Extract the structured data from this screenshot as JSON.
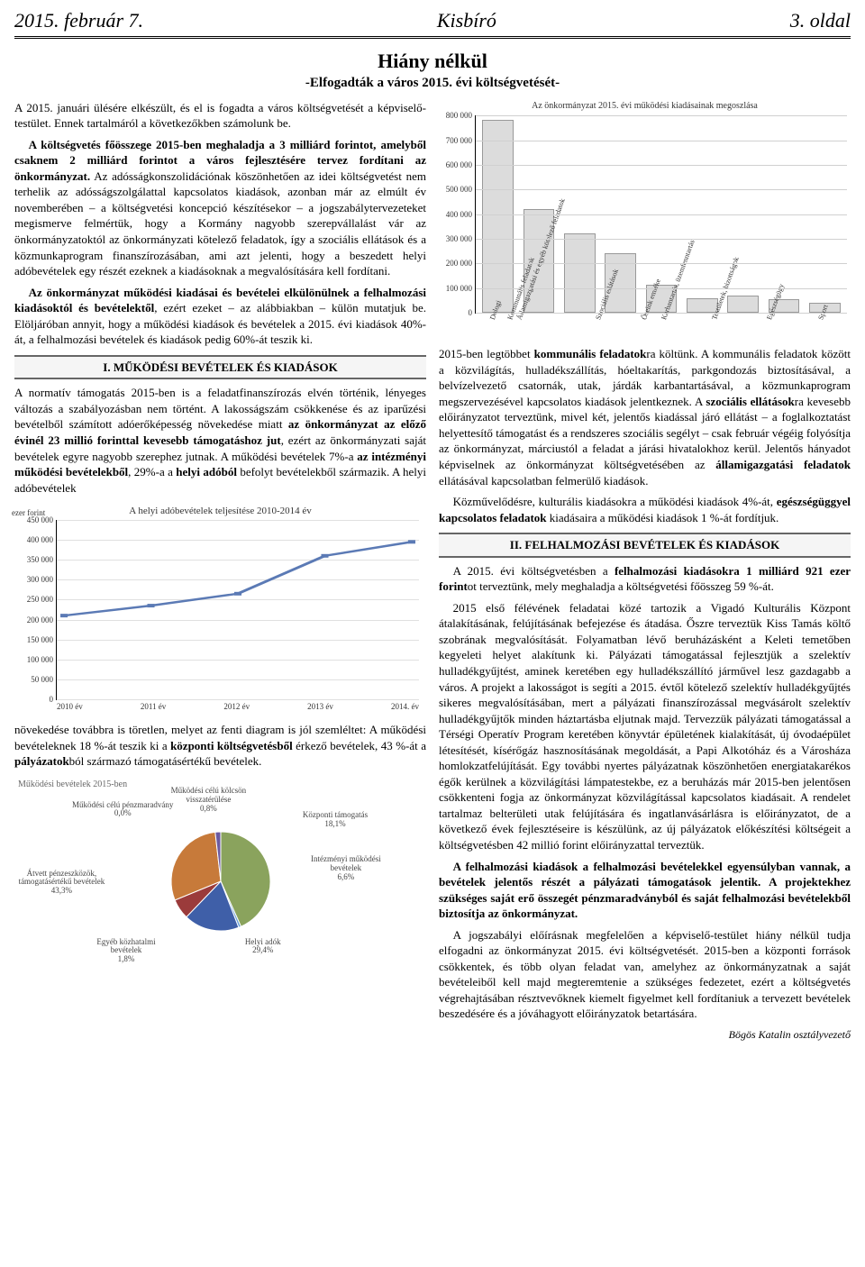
{
  "header": {
    "date": "2015. február 7.",
    "title": "Kisbíró",
    "page": "3. oldal"
  },
  "article": {
    "title": "Hiány nélkül",
    "subtitle": "-Elfogadták a város 2015. évi költségvetését-"
  },
  "left": {
    "p1": "A 2015. januári ülésére elkészült, és el is fogadta a város költségvetését a képviselő-testület. Ennek tartalmáról a következőkben számolunk be.",
    "p2_plain_a": "A költségvetés főösszege 2015-ben meghaladja a 3 milliárd forintot, amelyből csaknem 2 milliárd forintot a város fejlesztésére tervez fordítani az önkormányzat.",
    "p2_plain_b": " Az adósságkonszolidációnak köszönhetően az idei költségvetést nem terhelik az adósságszolgálattal kapcsolatos kiadások, azonban már az elmúlt év novemberében – a költségvetési koncepció készítésekor – a jogszabálytervezeteket megismerve felmértük, hogy a Kormány nagyobb szerepvállalást vár az önkormányzatoktól az önkormányzati kötelező feladatok, így a szociális ellátások és a közmunkaprogram finanszírozásában, ami azt jelenti, hogy a beszedett helyi adóbevételek egy részét ezeknek a kiadásoknak a megvalósítására kell fordítani.",
    "p3_bold": "Az önkormányzat működési kiadásai és bevételei elkülönülnek a felhalmozási kiadásoktól és bevételektől",
    "p3_rest": ", ezért ezeket – az alábbiakban – külön mutatjuk be. Elöljáróban annyit, hogy a működési kiadások és bevételek a 2015. évi kiadások 40%-át, a felhalmozási bevételek és kiadások pedig 60%-át teszik ki.",
    "h1": "I. MŰKÖDÉSI BEVÉTELEK ÉS KIADÁSOK",
    "p4_a": "A normatív támogatás 2015-ben is a feladatfinanszírozás elvén történik, lényeges változás a szabályozásban nem történt. A lakosságszám csökkenése és az iparűzési bevételből számított adóerőképesség növekedése miatt ",
    "p4_bold": "az önkormányzat az előző évinél 23 millió forinttal kevesebb támogatáshoz jut",
    "p4_b": ", ezért az önkormányzati saját bevételek egyre nagyobb szerephez jutnak. A működési bevételek 7%-a ",
    "p4_bold2": "az intézményi működési bevételekből",
    "p4_c": ", 29%-a a ",
    "p4_bold3": "helyi adóból",
    "p4_d": " befolyt bevételekből származik. A helyi adóbevételek",
    "p5_a": "növekedése továbbra is töretlen, melyet az fenti diagram is jól szemléltet: A működési bevételeknek 18 %-át teszik ki a ",
    "p5_bold1": "központi költségvetésből",
    "p5_b": " érkező bevételek, 43 %-át a ",
    "p5_bold2": "pályázatok",
    "p5_c": "ból származó támogatásértékű bevételek."
  },
  "right": {
    "p1_a": "2015-ben legtöbbet ",
    "p1_bold1": "kommunális feladatok",
    "p1_b": "ra költünk. A kommunális feladatok között a közvilágítás, hulladékszállítás, hóeltakarítás, parkgondozás biztosításával, a belvízelvezető csatornák, utak, járdák karbantartásával, a közmunkaprogram megszervezésével kapcsolatos kiadások jelentkeznek. A ",
    "p1_bold2": "szociális ellátások",
    "p1_c": "ra kevesebb előirányzatot terveztünk, mivel két, jelentős kiadással járó ellátást – a foglalkoztatást helyettesítő támogatást és a rendszeres szociális segélyt – csak február végéig folyósítja az önkormányzat, márciustól a feladat a járási hivatalokhoz kerül. Jelentős hányadot képviselnek az önkormányzat költségvetésében az ",
    "p1_bold3": "államigazgatási feladatok",
    "p1_d": " ellátásával kapcsolatban felmerülő kiadások.",
    "p2_a": "Közművelődésre, kulturális kiadásokra a működési kiadások 4%-át, ",
    "p2_bold": "egészségüggyel kapcsolatos feladatok",
    "p2_b": " kiadásaira a működési kiadások 1 %-át fordítjuk.",
    "h2": "II. FELHALMOZÁSI BEVÉTELEK ÉS KIADÁSOK",
    "p3_a": "A 2015. évi költségvetésben a ",
    "p3_bold": "felhalmozási kiadásokra 1 milliárd 921 ezer forint",
    "p3_b": "ot terveztünk, mely meghaladja a költségvetési főösszeg 59 %-át.",
    "p4": "2015 első félévének feladatai közé tartozik a Vigadó Kulturális Központ átalakításának, felújításának befejezése és átadása. Őszre terveztük Kiss Tamás költő szobrának megvalósítását. Folyamatban lévő beruházásként a Keleti temetőben kegyeleti helyet alakítunk ki. Pályázati támogatással fejlesztjük a szelektív hulladékgyűjtést, aminek keretében egy hulladékszállító járművel lesz gazdagabb a város. A projekt a lakosságot is segíti a 2015. évtől kötelező szelektív hulladékgyűjtés sikeres megvalósításában, mert a pályázati finanszírozással megvásárolt szelektív hulladékgyűjtők minden háztartásba eljutnak majd. Tervezzük pályázati támogatással a Térségi Operatív Program keretében könyvtár épületének kialakítását, új óvodaépület létesítését, kísérőgáz hasznosításának megoldását, a Papi Alkotóház és a Városháza homlokzatfelújítását. Egy további nyertes pályázatnak köszönhetően energiatakarékos égők kerülnek a közvilágítási lámpatestekbe, ez a beruházás már 2015-ben jelentősen csökkenteni fogja az önkormányzat közvilágítással kapcsolatos kiadásait. A rendelet tartalmaz belterületi utak felújítására és ingatlanvásárlásra is előirányzatot, de a következő évek fejlesztéseire is készülünk, az új pályázatok előkészítési költségeit a költségvetésben 42 millió forint előirányzattal terveztük.",
    "p5": "A felhalmozási kiadások a felhalmozási bevételekkel egyensúlyban vannak, a bevételek jelentős részét a pályázati támogatások jelentik. A projektekhez szükséges saját erő összegét pénzmaradványból és saját felhalmozási bevételekből biztosítja az önkormányzat.",
    "p6": "A jogszabályi előírásnak megfelelően a képviselő-testület hiány nélkül tudja elfogadni az önkormányzat 2015. évi költségvetését. 2015-ben a központi források csökkentek, és több olyan feladat van, amelyhez az önkormányzatnak a saját bevételeiből kell majd megteremtenie a szükséges fedezetet, ezért a költségvetés végrehajtásában résztvevőknek kiemelt figyelmet kell fordítaniuk a tervezett bevételek beszedésére és a jóváhagyott előirányzatok betartására.",
    "signature": "Bögös Katalin osztályvezető"
  },
  "barchart": {
    "type": "bar",
    "title": "Az önkormányzat 2015. évi működési kiadásainak megoszlása",
    "ylabel": "ezer forint",
    "ymax": 800000,
    "ytick_step": 100000,
    "bar_fill": "#dcdcdc",
    "bar_border": "#999999",
    "grid_color": "#d0d0d0",
    "categories": [
      "Dologi",
      "Kommunális feladatok",
      "Államigazgatási és egyéb kötelező feladatok",
      "Szociális ellátások",
      "Őseink emléke",
      "Karbantartás, üzemfenntartás",
      "Testületek, bizottságok",
      "Egészségügy",
      "Sport"
    ],
    "values": [
      780000,
      420000,
      320000,
      240000,
      115000,
      60000,
      70000,
      55000,
      40000
    ]
  },
  "linechart": {
    "type": "line",
    "title": "A helyi adóbevételek teljesítése 2010-2014 év",
    "ylabel": "ezer forint",
    "ymax": 450000,
    "ytick_step": 50000,
    "line_color": "#5b7ab5",
    "marker_color": "#5b7ab5",
    "grid_color": "#e0e0e0",
    "x": [
      "2010 év",
      "2011 év",
      "2012 év",
      "2013 év",
      "2014. év"
    ],
    "y": [
      210000,
      235000,
      265000,
      360000,
      395000
    ]
  },
  "piechart": {
    "type": "pie",
    "title": "Működési bevételek 2015-ben",
    "slices": [
      {
        "label": "Átvett pénzeszközök, támogatásértékű bevételek",
        "pct": 43.3,
        "color": "#8aa35d"
      },
      {
        "label": "Működési célú pénzmaradvány",
        "pct": 0.0,
        "color": "#a6a6a6"
      },
      {
        "label": "Működési célú kölcsön visszatérülése",
        "pct": 0.8,
        "color": "#6aa0d8"
      },
      {
        "label": "Központi támogatás",
        "pct": 18.1,
        "color": "#3f5fa8"
      },
      {
        "label": "Intézményi működési bevételek",
        "pct": 6.6,
        "color": "#9b3b3b"
      },
      {
        "label": "Helyi adók",
        "pct": 29.4,
        "color": "#c77a3a"
      },
      {
        "label": "Egyéb közhatalmi bevételek",
        "pct": 1.8,
        "color": "#6b5aa0"
      }
    ]
  }
}
